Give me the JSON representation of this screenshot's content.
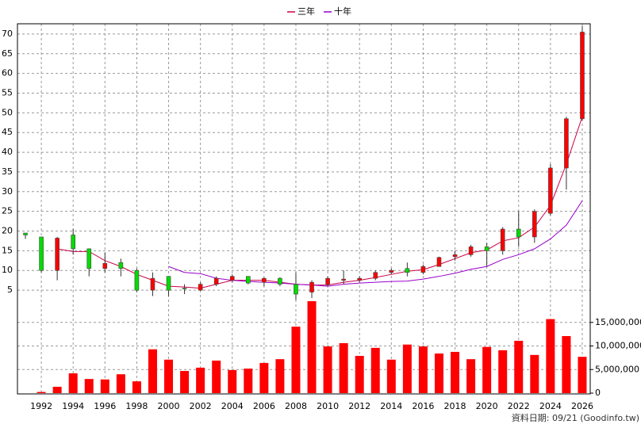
{
  "chart_data": {
    "type": "candlestick",
    "x": [
      1991,
      1992,
      1993,
      1994,
      1995,
      1996,
      1997,
      1998,
      1999,
      2000,
      2001,
      2002,
      2003,
      2004,
      2005,
      2006,
      2007,
      2008,
      2009,
      2010,
      2011,
      2012,
      2013,
      2014,
      2015,
      2016,
      2017,
      2018,
      2019,
      2020,
      2021,
      2022,
      2023,
      2024,
      2025,
      2026
    ],
    "open": [
      19.5,
      18.5,
      10,
      19,
      15.5,
      10.5,
      12,
      10,
      5,
      8.5,
      5.5,
      5,
      6.5,
      7.5,
      8.5,
      7,
      8,
      6.5,
      4.5,
      6.5,
      7.5,
      7.5,
      8,
      9.5,
      10.5,
      9.5,
      11,
      13.5,
      14,
      16,
      15,
      20.5,
      18.5,
      24.5,
      36,
      48.5
    ],
    "high": [
      19.5,
      18.5,
      18.5,
      20.5,
      15.5,
      14.5,
      13,
      10.5,
      9.5,
      8.5,
      6.5,
      7,
      8.5,
      9,
      8.5,
      8.2,
      8.3,
      9.5,
      7.5,
      8.5,
      10,
      8.5,
      10,
      10.5,
      12,
      11.5,
      13.5,
      15,
      16.5,
      17,
      21,
      25,
      25.5,
      37,
      49,
      72
    ],
    "low": [
      18,
      9.5,
      7.5,
      14,
      8.5,
      9.5,
      8.5,
      4.5,
      3.5,
      3.5,
      4,
      4.8,
      6,
      7,
      6.5,
      6,
      6,
      2.5,
      3,
      6,
      6.5,
      7,
      7.5,
      9,
      8.5,
      9,
      11,
      12.5,
      13.5,
      11,
      14,
      16,
      17,
      24,
      30.5,
      48
    ],
    "close": [
      19,
      10,
      18.2,
      15.5,
      10.5,
      11.8,
      10.5,
      5,
      8,
      5,
      5.3,
      6.5,
      8,
      8.5,
      6.8,
      8,
      6.5,
      4,
      7,
      8,
      7.8,
      8,
      9.5,
      10,
      9.5,
      11,
      13.3,
      14,
      16,
      15,
      20.5,
      18.5,
      25,
      36,
      48.5,
      70.5
    ],
    "up_color": "#ff0000",
    "down_color": "#00dd00",
    "series": [
      {
        "name": "三年",
        "color": "#cc0044",
        "values": [
          null,
          null,
          15.5,
          14.8,
          14.8,
          12.5,
          11,
          9,
          7.5,
          6,
          5.8,
          5.5,
          6.5,
          7.5,
          7.5,
          7.5,
          7,
          6.5,
          6.3,
          6.3,
          7,
          7.5,
          8.2,
          9,
          9.8,
          10.2,
          11.5,
          13,
          14.5,
          15.2,
          17.5,
          18.3,
          21,
          26.5,
          37,
          49
        ]
      },
      {
        "name": "十年",
        "color": "#9900cc",
        "values": [
          null,
          null,
          null,
          null,
          null,
          null,
          null,
          null,
          null,
          11,
          9.5,
          9.2,
          8,
          7.5,
          7.2,
          7,
          6.8,
          6.5,
          6.3,
          6,
          6.5,
          6.8,
          7,
          7.2,
          7.3,
          7.8,
          8.5,
          9.3,
          10.3,
          11,
          12.8,
          14,
          15.5,
          18,
          21.5,
          27.7
        ]
      }
    ],
    "volume": {
      "color": "#ff0000",
      "axis": "y2",
      "values": [
        null,
        250000,
        1350000,
        4200000,
        3000000,
        2900000,
        4000000,
        2500000,
        9300000,
        7100000,
        4700000,
        5400000,
        6900000,
        4900000,
        5200000,
        6400000,
        7200000,
        14100000,
        19500000,
        9900000,
        10600000,
        7900000,
        9600000,
        7100000,
        10300000,
        9900000,
        8400000,
        8750000,
        7200000,
        9800000,
        9100000,
        11100000,
        8100000,
        15700000,
        12100000,
        7700000
      ]
    },
    "xlim": [
      1990.5,
      2026.5
    ],
    "xticks": [
      1992,
      1994,
      1996,
      1998,
      2000,
      2002,
      2004,
      2006,
      2008,
      2010,
      2012,
      2014,
      2016,
      2018,
      2020,
      2022,
      2024,
      2026
    ],
    "ylim": [
      2.2,
      72.6
    ],
    "yticks": [
      5,
      10,
      15,
      20,
      25,
      30,
      35,
      40,
      45,
      50,
      55,
      60,
      65,
      70
    ],
    "y2lim": [
      0,
      19500000
    ],
    "y2ticks": [
      0,
      {
        "value": 5000000,
        "label": "5,000,000"
      },
      {
        "value": 10000000,
        "label": "10,000,000"
      },
      {
        "value": 15000000,
        "label": "15,000,000"
      }
    ],
    "grid": true,
    "legend": "top",
    "source": "資料日期: 09/21  (Goodinfo.tw)"
  }
}
